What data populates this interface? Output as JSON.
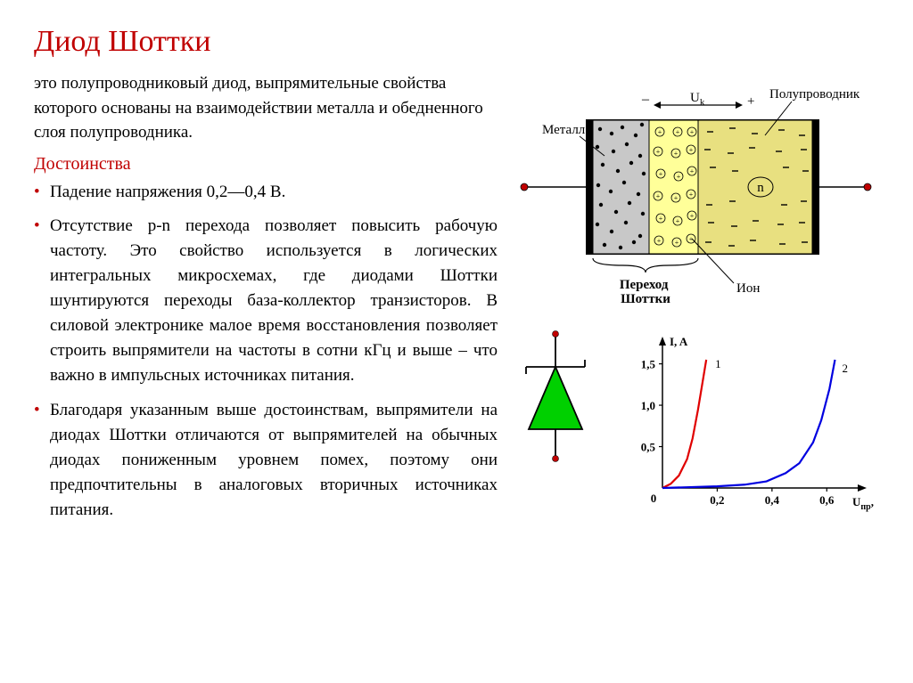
{
  "title": "Диод Шоттки",
  "intro": "это полупроводниковый диод, выпрямительные свойства которого основаны на взаимодействии металла и обедненного слоя полупроводника.",
  "advantages_heading": "Достоинства",
  "bullets": [
    "Падение напряжения  0,2—0,4 В.",
    "Отсутствие p-n перехода позволяет повысить рабочую частоту. Это свойство используется в логических интегральных микросхемах, где диодами Шоттки шунтируются переходы база-коллектор транзисторов. В силовой электронике малое время восстановления позволяет строить выпрямители на частоты в сотни кГц и выше – что важно в импульсных источниках питания.",
    "Благодаря указанным выше достоинствам, выпрямители на диодах Шоттки отличаются от выпрямителей на обычных диодах пониженным уровнем помех, поэтому они предпочтительны в аналоговых вторичных источниках питания."
  ],
  "structure": {
    "label_metal": "Металл",
    "label_semiconductor": "Полупроводник",
    "label_uk": "U",
    "label_uk_sub": "k",
    "label_junction": "Переход Шоттки",
    "label_ion": "Ион",
    "label_n": "n",
    "sign_minus": "–",
    "sign_plus": "+",
    "colors": {
      "metal_fill": "#c8c8c8",
      "depletion_fill": "#ffff99",
      "semicond_fill": "#e8e080",
      "border": "#000000",
      "terminal": "#c00000"
    }
  },
  "symbol": {
    "fill": "#00d000",
    "stroke": "#000000"
  },
  "chart": {
    "type": "line",
    "title": "",
    "y_label": "I, A",
    "x_label": "U",
    "x_label_sub": "пр",
    "x_unit": ", B",
    "yticks": [
      "0",
      "0,5",
      "1,0",
      "1,5"
    ],
    "xticks": [
      "0",
      "0,2",
      "0,4",
      "0,6"
    ],
    "series": [
      {
        "name": "1",
        "color": "#e00000",
        "points": [
          [
            0,
            0
          ],
          [
            0.03,
            0.05
          ],
          [
            0.06,
            0.15
          ],
          [
            0.09,
            0.35
          ],
          [
            0.11,
            0.6
          ],
          [
            0.13,
            0.95
          ],
          [
            0.15,
            1.35
          ],
          [
            0.16,
            1.55
          ]
        ]
      },
      {
        "name": "2",
        "color": "#0000e0",
        "points": [
          [
            0,
            0
          ],
          [
            0.1,
            0.01
          ],
          [
            0.2,
            0.02
          ],
          [
            0.3,
            0.04
          ],
          [
            0.38,
            0.08
          ],
          [
            0.45,
            0.18
          ],
          [
            0.5,
            0.3
          ],
          [
            0.55,
            0.55
          ],
          [
            0.58,
            0.82
          ],
          [
            0.61,
            1.2
          ],
          [
            0.63,
            1.55
          ]
        ]
      }
    ],
    "xlim": [
      0,
      0.7
    ],
    "ylim": [
      0,
      1.7
    ],
    "axis_color": "#000000",
    "line_width": 2.2,
    "background": "#ffffff"
  }
}
